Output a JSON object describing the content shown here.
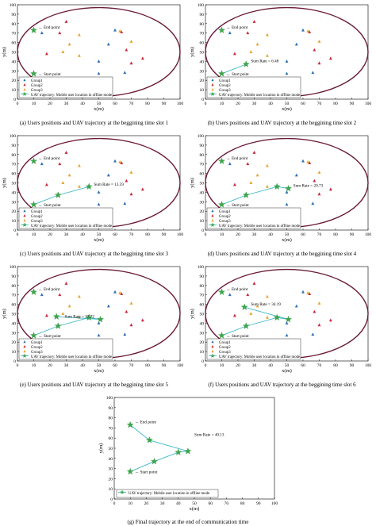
{
  "colors": {
    "frame": "#000000",
    "ellipse": "#6b1a3a",
    "group1": "#2e6fb5",
    "group2": "#c8283c",
    "group3": "#e8a52e",
    "uav": "#3eb7c9",
    "star": "#3ba84a"
  },
  "icons": {
    "group1": "triangle-marker-icon",
    "group2": "triangle-marker-icon",
    "group3": "triangle-marker-icon",
    "uav": "star-marker-icon"
  },
  "legend_entries": [
    "Group1",
    "Group2",
    "Group3",
    "UAV trajectory: Mobile user location in offline mode"
  ],
  "shared": {
    "xlabel": "x(m)",
    "ylabel": "y(m)",
    "xlim": [
      0,
      100
    ],
    "ylim": [
      0,
      100
    ],
    "xticks": [
      "0",
      "10",
      "20",
      "30",
      "40",
      "50",
      "60",
      "70",
      "80",
      "90",
      "100"
    ],
    "yticks": [
      "0",
      "10",
      "20",
      "30",
      "40",
      "50",
      "60",
      "70",
      "80",
      "90",
      "100"
    ],
    "end_label": "End point",
    "start_label": "Start point",
    "ellipse": {
      "cx": 50,
      "cy": 50,
      "rx": 50,
      "ry": 47
    },
    "users": {
      "group1": [
        [
          15,
          70
        ],
        [
          13,
          13
        ],
        [
          50,
          27
        ],
        [
          50,
          40
        ],
        [
          56,
          58
        ],
        [
          60,
          73
        ],
        [
          66,
          28
        ]
      ],
      "group2": [
        [
          18,
          48
        ],
        [
          26,
          70
        ],
        [
          30,
          82
        ],
        [
          51,
          8
        ],
        [
          64,
          71
        ],
        [
          67,
          52
        ],
        [
          70,
          38
        ],
        [
          77,
          43
        ]
      ],
      "group3": [
        [
          28,
          50
        ],
        [
          32,
          58
        ],
        [
          38,
          68
        ],
        [
          38,
          46
        ],
        [
          47,
          16
        ],
        [
          63,
          72
        ],
        [
          70,
          61
        ]
      ]
    }
  },
  "chart_data": [
    {
      "type": "scatter",
      "caption": "(a) Users positions and UAV trajectory at the beggining time slot 1",
      "trajectory": [
        [
          10,
          27
        ]
      ],
      "rate_label": "",
      "rate_pos": [
        0,
        0
      ],
      "show_legend": true
    },
    {
      "type": "scatter",
      "caption": "(b) Users positions and UAV trajectory at the beggining time slot 2",
      "trajectory": [
        [
          10,
          27
        ],
        [
          25,
          37
        ]
      ],
      "rate_label": "Sum Rate = 6.48",
      "rate_pos": [
        28,
        39
      ],
      "show_legend": true
    },
    {
      "type": "scatter",
      "caption": "(c) Users positions and UAV trajectory at the beggining time slot 3",
      "trajectory": [
        [
          10,
          27
        ],
        [
          25,
          37
        ],
        [
          44,
          46
        ]
      ],
      "rate_label": "Sum Rate = 13.59",
      "rate_pos": [
        47,
        47
      ],
      "show_legend": true
    },
    {
      "type": "scatter",
      "caption": "(d) Users positions and UAV trajectory at the beggining time slot 4",
      "trajectory": [
        [
          10,
          27
        ],
        [
          25,
          37
        ],
        [
          44,
          46
        ],
        [
          51,
          44
        ]
      ],
      "rate_label": "Sum Rate = 20.73",
      "rate_pos": [
        54,
        46
      ],
      "show_legend": true
    },
    {
      "type": "scatter",
      "caption": "(e) Users positions and UAV trajectory at the beggining time slot 5",
      "trajectory": [
        [
          10,
          27
        ],
        [
          25,
          37
        ],
        [
          44,
          46
        ],
        [
          51,
          44
        ],
        [
          24,
          47
        ]
      ],
      "rate_label": "Sum Rate = 27.72",
      "rate_pos": [
        29,
        46
      ],
      "show_legend": true
    },
    {
      "type": "scatter",
      "caption": "(f) Users positions and UAV trajectory at the beggining time slot 6",
      "trajectory": [
        [
          10,
          27
        ],
        [
          25,
          37
        ],
        [
          44,
          46
        ],
        [
          51,
          44
        ],
        [
          24,
          57
        ]
      ],
      "rate_label": "Sum Rate = 34.19",
      "rate_pos": [
        28,
        59
      ],
      "show_legend": true
    },
    {
      "type": "scatter",
      "caption": "(g) Final trajectory at the end of communication time",
      "trajectory": [
        [
          10,
          27
        ],
        [
          25,
          37
        ],
        [
          40,
          46
        ],
        [
          46,
          47
        ],
        [
          22,
          58
        ],
        [
          10,
          73
        ]
      ],
      "rate_label": "Sum Rate = 40.13",
      "rate_pos": [
        50,
        62
      ],
      "show_legend": false
    }
  ]
}
